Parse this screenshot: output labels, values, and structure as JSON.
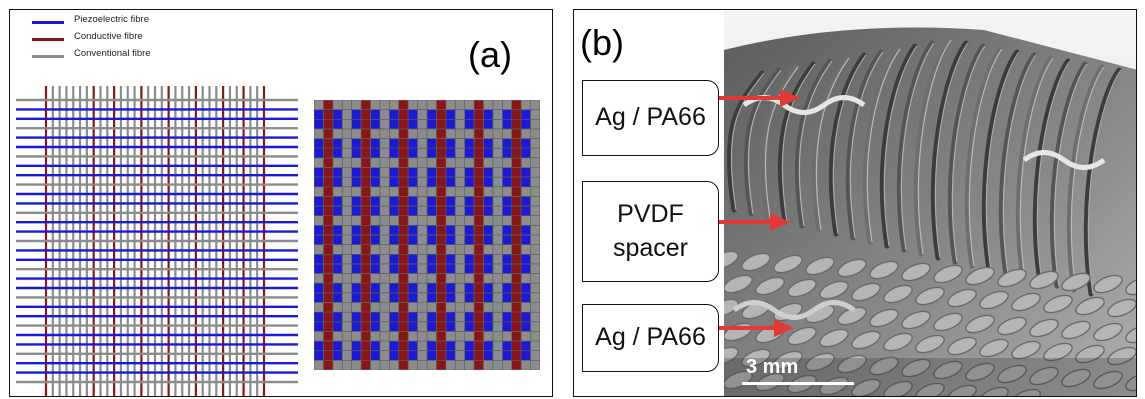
{
  "panel_a": {
    "label": "(a)",
    "legend": [
      {
        "label": "Piezoelectric fibre",
        "color": "#1a1ad6"
      },
      {
        "label": "Conductive fibre",
        "color": "#8b1414"
      },
      {
        "label": "Conventional fibre",
        "color": "#8c8c8c"
      }
    ]
  },
  "panel_b": {
    "label": "(b)",
    "callouts": [
      {
        "text": "Ag / PA66"
      },
      {
        "text": "PVDF\nspacer"
      },
      {
        "text": "Ag / PA66"
      }
    ],
    "scale_bar": "3 mm",
    "arrow_color": "#e23a32"
  }
}
